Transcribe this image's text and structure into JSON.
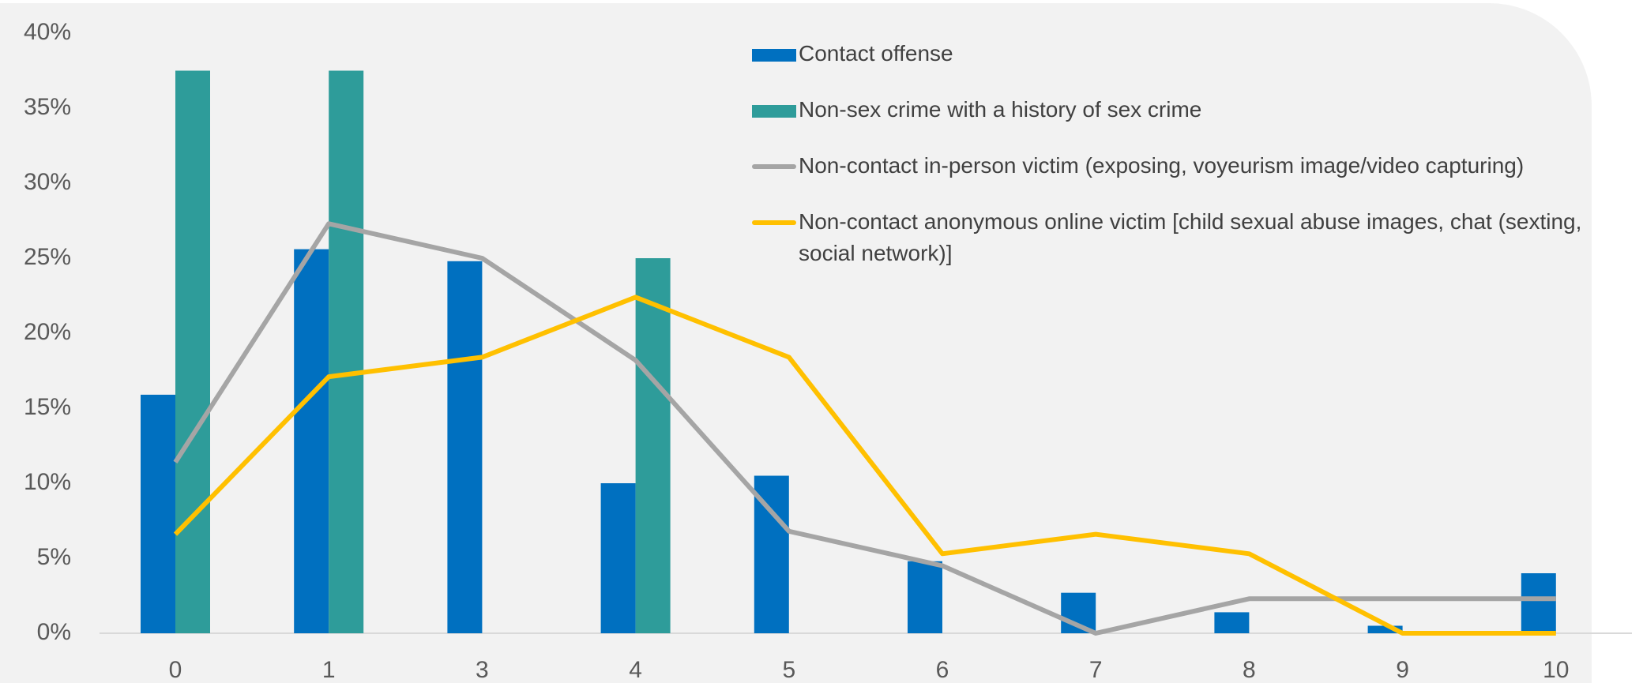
{
  "chart_data": {
    "type": "bar-line",
    "categories": [
      "0",
      "1",
      "3",
      "4",
      "5",
      "6",
      "7",
      "8",
      "9",
      "10"
    ],
    "ylim": [
      0,
      40
    ],
    "yticks": [
      {
        "value": 0,
        "label": "0%"
      },
      {
        "value": 5,
        "label": "5%"
      },
      {
        "value": 10,
        "label": "10%"
      },
      {
        "value": 15,
        "label": "15%"
      },
      {
        "value": 20,
        "label": "20%"
      },
      {
        "value": 25,
        "label": "25%"
      },
      {
        "value": 30,
        "label": "30%"
      },
      {
        "value": 35,
        "label": "35%"
      },
      {
        "value": 40,
        "label": "40%"
      }
    ],
    "series": [
      {
        "name": "Contact offense",
        "kind": "bar",
        "color": "#0070c0",
        "values": [
          15.9,
          25.6,
          24.8,
          10.0,
          10.5,
          4.8,
          2.7,
          1.4,
          0.5,
          4.0
        ]
      },
      {
        "name": "Non-sex crime with a history of sex crime",
        "kind": "bar",
        "color": "#2e9c9a",
        "values": [
          37.5,
          37.5,
          0,
          25.0,
          0,
          0,
          0,
          0,
          0,
          0
        ]
      },
      {
        "name": "Non-contact in-person victim (exposing, voyeurism image/video capturing)",
        "kind": "line",
        "color": "#a5a5a5",
        "values": [
          11.4,
          27.3,
          25.0,
          18.2,
          6.8,
          4.5,
          0,
          2.3,
          2.3,
          2.3
        ]
      },
      {
        "name": "Non-contact anonymous online victim [child sexual abuse images, chat (sexting, social network)]",
        "kind": "line",
        "color": "#ffc000",
        "values": [
          6.6,
          17.1,
          18.4,
          22.4,
          18.4,
          5.3,
          6.6,
          5.3,
          0,
          0
        ]
      }
    ]
  }
}
